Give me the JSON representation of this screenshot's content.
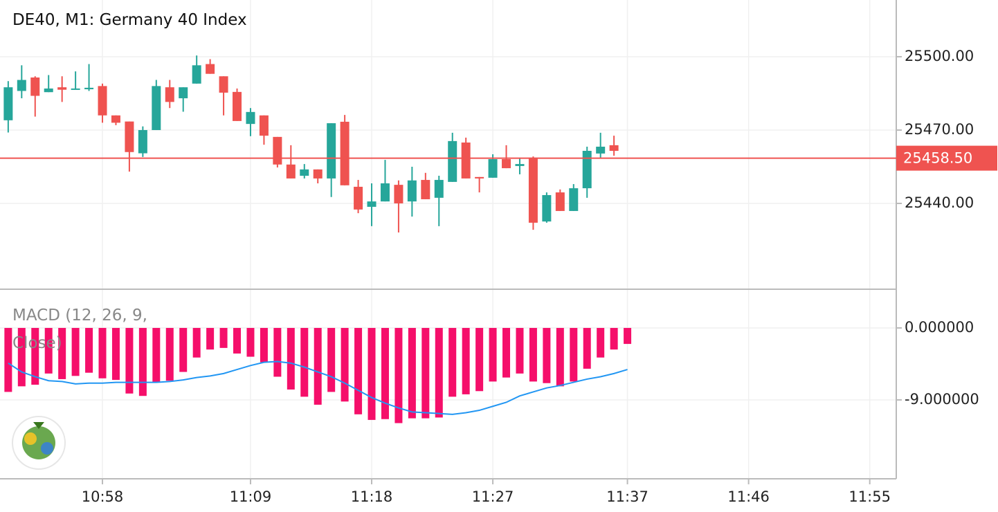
{
  "chart_data": [
    {
      "type": "candlestick",
      "title": "DE40, M1: Germany 40 Index",
      "x": [
        651,
        652,
        653,
        654,
        655,
        656,
        657,
        658,
        659,
        660,
        661,
        662,
        663,
        664,
        665,
        666,
        667,
        668,
        669,
        670,
        671,
        672,
        673,
        674,
        675,
        676,
        677,
        678,
        679,
        680,
        681,
        682,
        683,
        684,
        685,
        686,
        687,
        688,
        689,
        690,
        691,
        692,
        693,
        694,
        695,
        696
      ],
      "open": [
        25474,
        25486,
        25491.5,
        25485.5,
        25487.5,
        25487,
        25486.7,
        25488,
        25476,
        25473.5,
        25460.5,
        25470,
        25487.5,
        25483,
        25489,
        25497,
        25492,
        25485.6,
        25472.5,
        25476,
        25467.2,
        25455.9,
        25451.3,
        25453.9,
        25450.2,
        25473.4,
        25446.8,
        25438.6,
        25440.8,
        25447.6,
        25440.8,
        25449.6,
        25442.3,
        25448.8,
        25464.9,
        25450.8,
        25450.5,
        25458.1,
        25455.3,
        25458.7,
        25432.6,
        25444.5,
        25436.9,
        25446.2,
        25460.4,
        25463.8
      ],
      "high": [
        25490,
        25496.5,
        25492,
        25492.5,
        25492,
        25494,
        25497,
        25489,
        25476,
        25473.5,
        25471.5,
        25490.5,
        25490.5,
        25487.5,
        25500.5,
        25499,
        25492,
        25487,
        25479,
        25476,
        25467.2,
        25463.8,
        25456.1,
        25453.9,
        25472.8,
        25476.2,
        25449.6,
        25448.2,
        25457.8,
        25449.4,
        25455,
        25452.5,
        25451.3,
        25468.9,
        25466.9,
        25450.8,
        25460.1,
        25463.8,
        25458.7,
        25459.2,
        25444.5,
        25445.7,
        25447.9,
        25463.2,
        25468.9,
        25467.7
      ],
      "low": [
        25469,
        25483,
        25475.5,
        25485.5,
        25481.5,
        25486.5,
        25486,
        25473,
        25472,
        25453,
        25459,
        25470,
        25479,
        25477.5,
        25489,
        25493,
        25476,
        25473.7,
        25467.5,
        25464,
        25454.7,
        25450.2,
        25450.2,
        25448.2,
        25442.6,
        25447.4,
        25436,
        25430.7,
        25440.8,
        25428.1,
        25434.6,
        25441.7,
        25430.7,
        25448.8,
        25450.2,
        25444.5,
        25450.5,
        25454.4,
        25451.9,
        25429.2,
        25432.1,
        25436.9,
        25436.9,
        25442.3,
        25458.7,
        25459.5
      ],
      "close": [
        25487.5,
        25490.5,
        25484,
        25487,
        25486.5,
        25487,
        25487.3,
        25476,
        25473,
        25461,
        25470,
        25488,
        25481.5,
        25487.5,
        25496.5,
        25493,
        25485.3,
        25473.7,
        25477.4,
        25467.7,
        25455.9,
        25450.2,
        25453.9,
        25450.2,
        25472.8,
        25447.4,
        25437.5,
        25440.8,
        25448.2,
        25440,
        25449.4,
        25441.7,
        25449.6,
        25465.5,
        25450.2,
        25450.2,
        25458.1,
        25454.4,
        25456.1,
        25432.1,
        25443.4,
        25436.9,
        25446.2,
        25461.5,
        25463.2,
        25461.5
      ],
      "up_color": "#26a69a",
      "down_color": "#ef5350",
      "xlim": [
        650.39,
        716.97
      ],
      "ylim": [
        25404.9,
        25523.2
      ],
      "yticks": [
        {
          "value": 25500,
          "label": "25500.00"
        },
        {
          "value": 25470,
          "label": "25470.00"
        },
        {
          "value": 25440,
          "label": "25440.00"
        }
      ],
      "last_price": {
        "value": 25458.5,
        "label": "25458.50"
      },
      "last_price_color": "#ef5350",
      "grid": true
    },
    {
      "type": "bar",
      "title": "MACD (12, 26, 9, Close)",
      "x": [
        651,
        652,
        653,
        654,
        655,
        656,
        657,
        658,
        659,
        660,
        661,
        662,
        663,
        664,
        665,
        666,
        667,
        668,
        669,
        670,
        671,
        672,
        673,
        674,
        675,
        676,
        677,
        678,
        679,
        680,
        681,
        682,
        683,
        684,
        685,
        686,
        687,
        688,
        689,
        690,
        691,
        692,
        693,
        694,
        695,
        696,
        697
      ],
      "series": [
        {
          "style": "bar",
          "color": "#f50f6a",
          "values": [
            -8.0,
            -7.3,
            -7.1,
            -5.7,
            -6.4,
            -6.0,
            -5.6,
            -6.3,
            -6.5,
            -8.2,
            -8.5,
            -6.8,
            -6.6,
            -5.5,
            -3.7,
            -2.7,
            -2.5,
            -3.2,
            -3.6,
            -4.3,
            -6.1,
            -7.7,
            -8.6,
            -9.6,
            -8.0,
            -9.2,
            -10.8,
            -11.5,
            -11.4,
            -11.9,
            -11.3,
            -11.3,
            -11.2,
            -8.6,
            -8.3,
            -7.9,
            -6.7,
            -6.2,
            -5.7,
            -6.7,
            -6.9,
            -7.3,
            -6.7,
            -5.1,
            -3.7,
            -2.7,
            -2.0
          ]
        },
        {
          "style": "line",
          "color": "#2196f3",
          "values": [
            -4.4,
            -5.5,
            -6.1,
            -6.6,
            -6.7,
            -7.0,
            -6.9,
            -6.9,
            -6.8,
            -6.8,
            -6.8,
            -6.8,
            -6.7,
            -6.5,
            -6.2,
            -6.0,
            -5.7,
            -5.2,
            -4.7,
            -4.3,
            -4.2,
            -4.4,
            -4.9,
            -5.5,
            -6.1,
            -6.9,
            -7.8,
            -8.7,
            -9.4,
            -10.0,
            -10.5,
            -10.6,
            -10.7,
            -10.8,
            -10.6,
            -10.3,
            -9.8,
            -9.3,
            -8.5,
            -8.0,
            -7.5,
            -7.2,
            -6.8,
            -6.4,
            -6.1,
            -5.7,
            -5.2
          ]
        }
      ],
      "xlim": [
        650.39,
        716.97
      ],
      "ylim": [
        -18.86,
        4.84
      ],
      "yticks": [
        {
          "value": 0,
          "label": "0.000000"
        },
        {
          "value": -9,
          "label": "-9.000000"
        }
      ],
      "xticks": [
        {
          "value": 658,
          "label": "10:58"
        },
        {
          "value": 669,
          "label": "11:09"
        },
        {
          "value": 678,
          "label": "11:18"
        },
        {
          "value": 687,
          "label": "11:27"
        },
        {
          "value": 697,
          "label": "11:37"
        },
        {
          "value": 706,
          "label": "11:46"
        },
        {
          "value": 715,
          "label": "11:55"
        }
      ],
      "grid": true
    }
  ]
}
